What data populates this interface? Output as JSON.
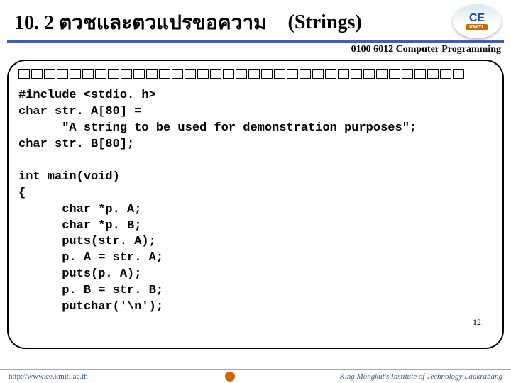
{
  "header": {
    "title_thai": "10. 2 ตวชและตวแปรขอความ",
    "title_eng": "(Strings)",
    "logo_top": "CE",
    "logo_bottom": "KMITL"
  },
  "course_line": "0100 6012 Computer Programming",
  "code": {
    "placeholder_count": 35,
    "line1": "#include <stdio. h>",
    "line2": "char str. A[80] =",
    "line3": "      \"A string to be used for demonstration purposes\";",
    "line4": "char str. B[80];",
    "line5": "",
    "line6": "int main(void)",
    "line7": "{",
    "line8": "      char *p. A;",
    "line9": "      char *p. B;",
    "line10": "      puts(str. A);",
    "line11": "      p. A = str. A;",
    "line12": "      puts(p. A);",
    "line13": "      p. B = str. B;",
    "line14": "      putchar('\\n');"
  },
  "page_num": "12",
  "footer": {
    "left": "http://www.ce.kmitl.ac.th",
    "right": "King Mongkut's Institute of Technology Ladkrabang"
  },
  "colors": {
    "blue_line": "#4060b0",
    "footer_text": "#3a5a9a",
    "logo_orange": "#cc6600"
  }
}
